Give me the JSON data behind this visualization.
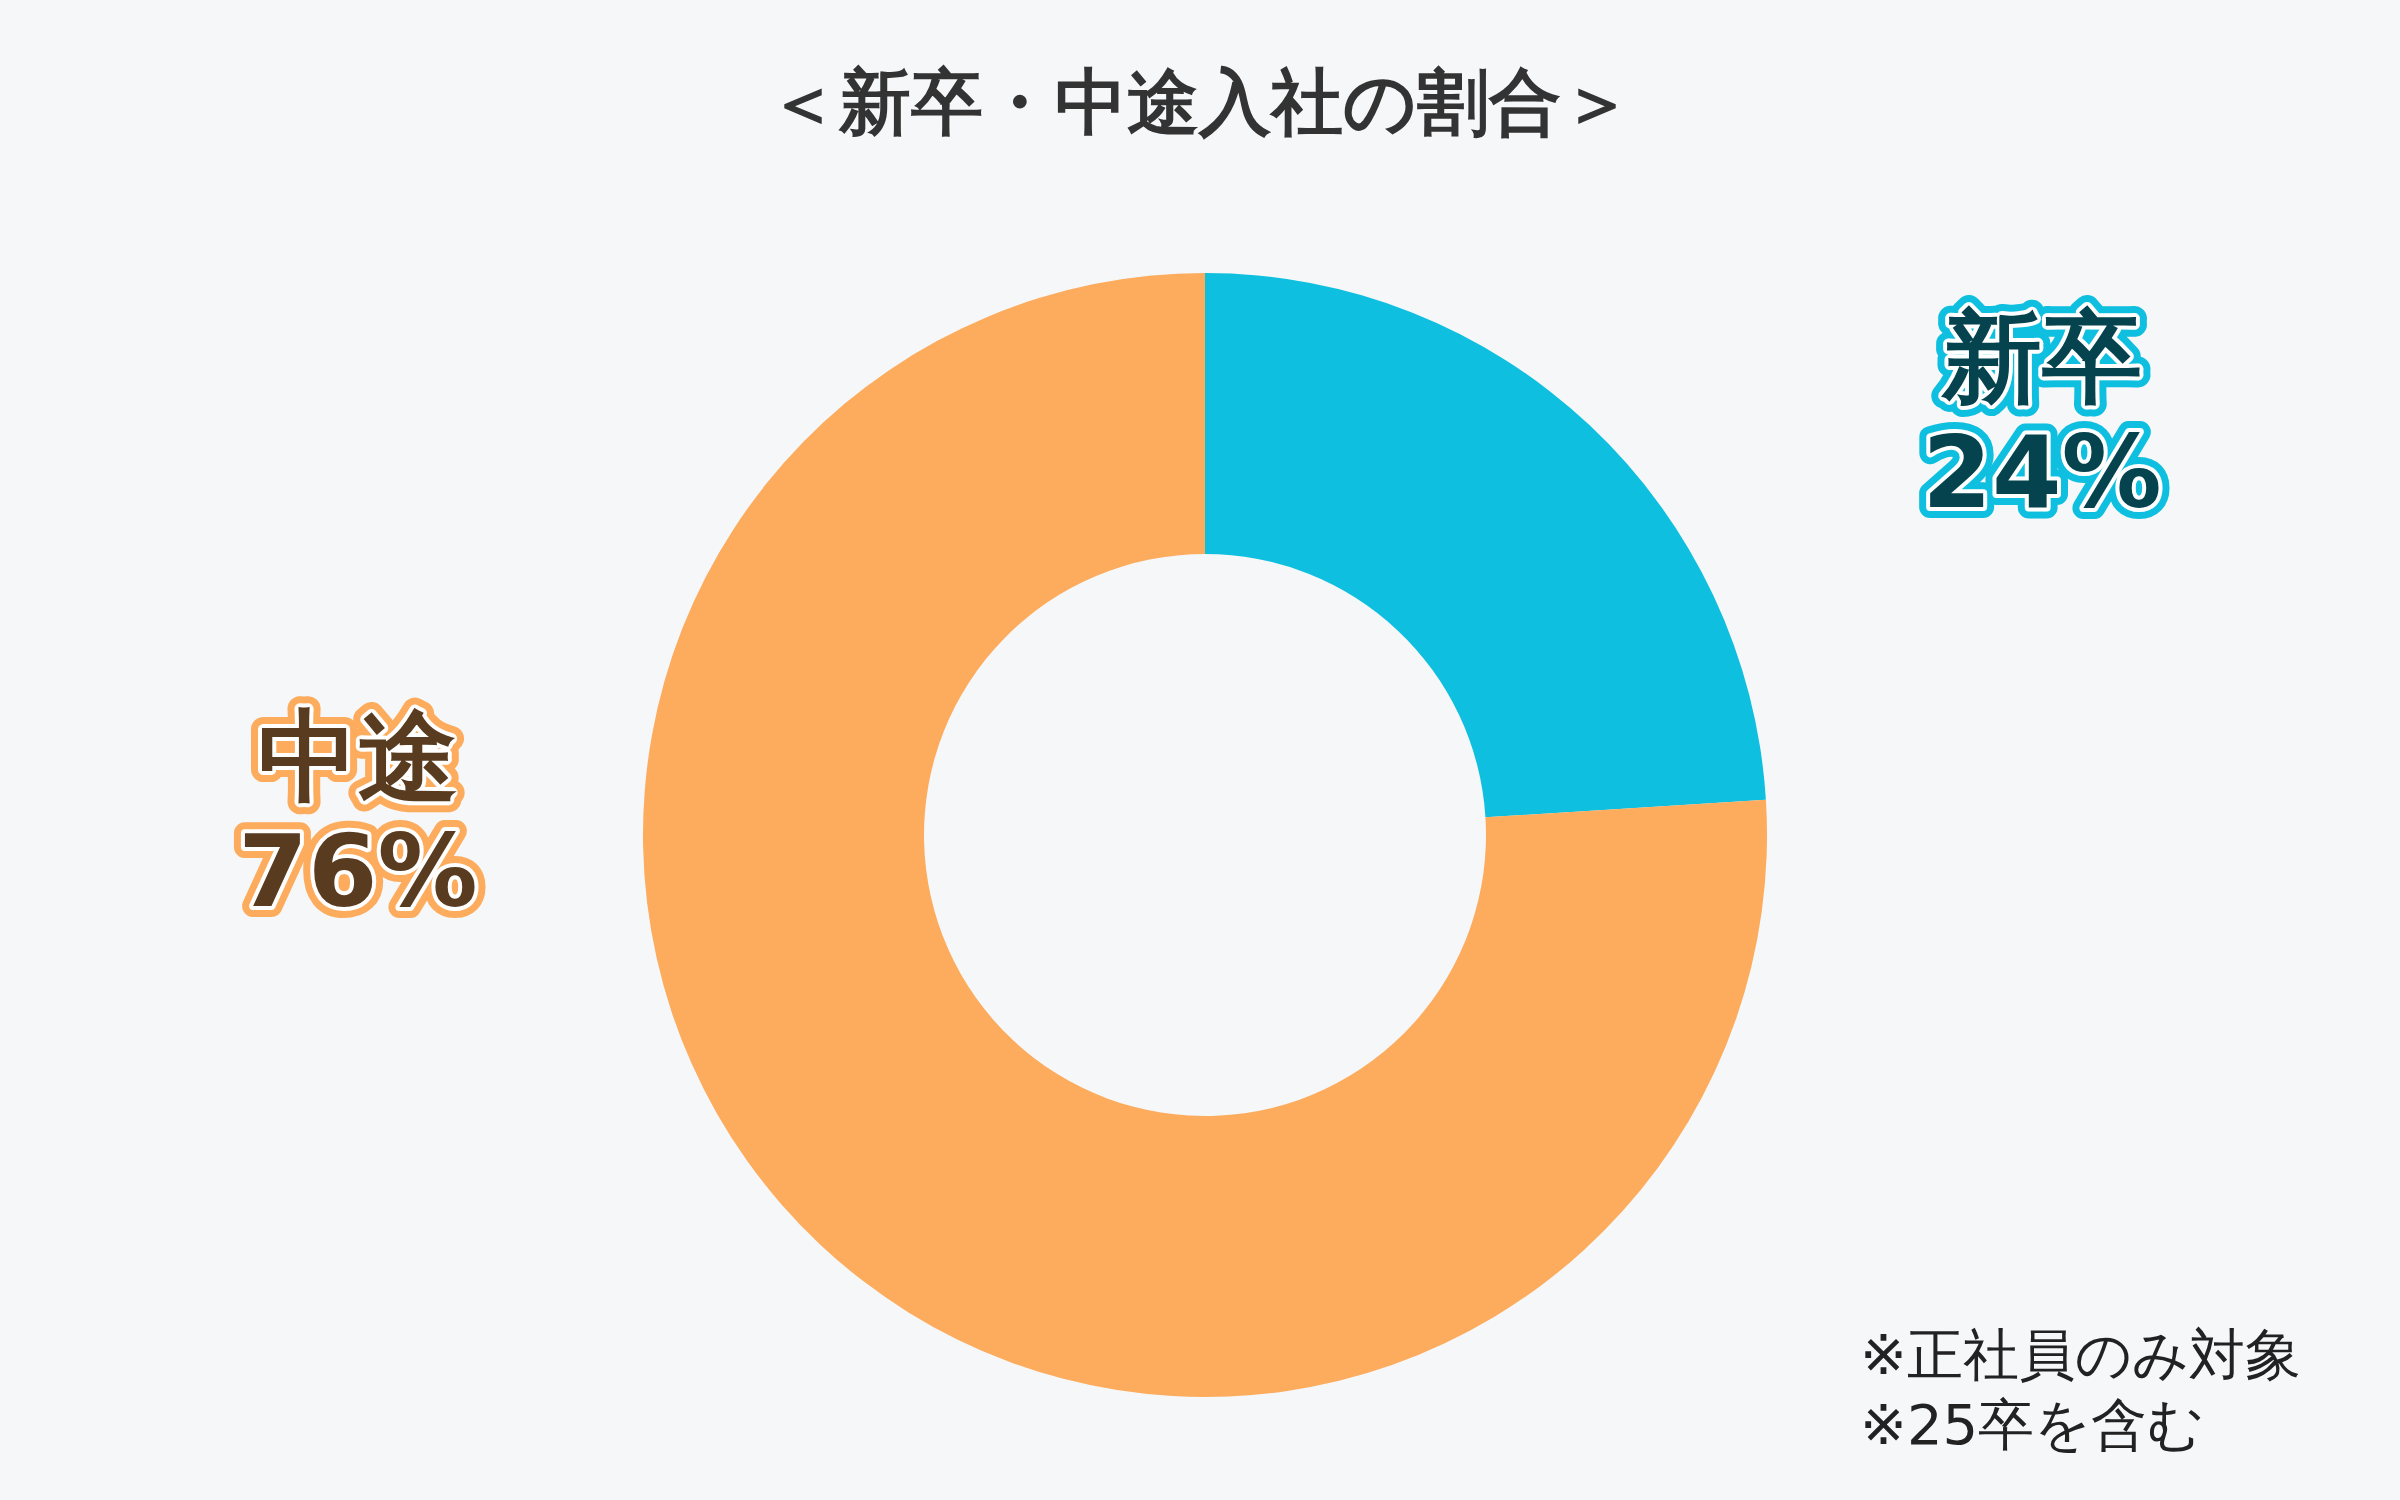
{
  "chart_data": {
    "type": "donut",
    "title": "＜新卒・中途入社の割合＞",
    "categories": [
      "新卒",
      "中途"
    ],
    "values": [
      24,
      76
    ],
    "value_labels": [
      "24%",
      "76%"
    ],
    "colors": [
      "#0fbfdf",
      "#fdab5c"
    ],
    "annotations": [
      "※正社員のみ対象",
      "※25卒を含む"
    ]
  }
}
